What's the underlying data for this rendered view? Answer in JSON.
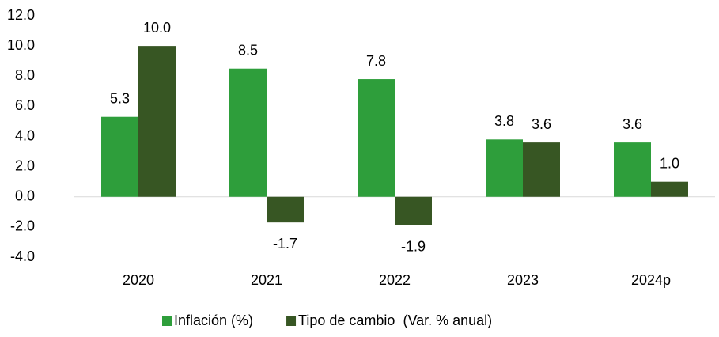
{
  "chart_data": {
    "type": "bar",
    "categories": [
      "2020",
      "2021",
      "2022",
      "2023",
      "2024p"
    ],
    "series": [
      {
        "name": "Inflación (%)",
        "color": "#2e9e3b",
        "values": [
          5.3,
          8.5,
          7.8,
          3.8,
          3.6
        ],
        "value_labels": [
          "5.3",
          "8.5",
          "7.8",
          "3.8",
          "3.6"
        ]
      },
      {
        "name": "Tipo de cambio  (Var. % anual)",
        "color": "#375623",
        "values": [
          10,
          -1.7,
          -1.9,
          3.6,
          1
        ],
        "value_labels": [
          "10.0",
          "-1.7",
          "-1.9",
          "3.6",
          "1.0"
        ]
      }
    ],
    "ylim": [
      -4,
      12
    ],
    "yticks": [
      {
        "value": -4,
        "label": "-4.0"
      },
      {
        "value": -2,
        "label": "-2.0"
      },
      {
        "value": 0,
        "label": "0.0"
      },
      {
        "value": 2,
        "label": "2.0"
      },
      {
        "value": 4,
        "label": "4.0"
      },
      {
        "value": 6,
        "label": "6.0"
      },
      {
        "value": 8,
        "label": "8.0"
      },
      {
        "value": 10,
        "label": "10.0"
      },
      {
        "value": 12,
        "label": "12.0"
      }
    ],
    "grid": false,
    "legend": "bottom"
  }
}
